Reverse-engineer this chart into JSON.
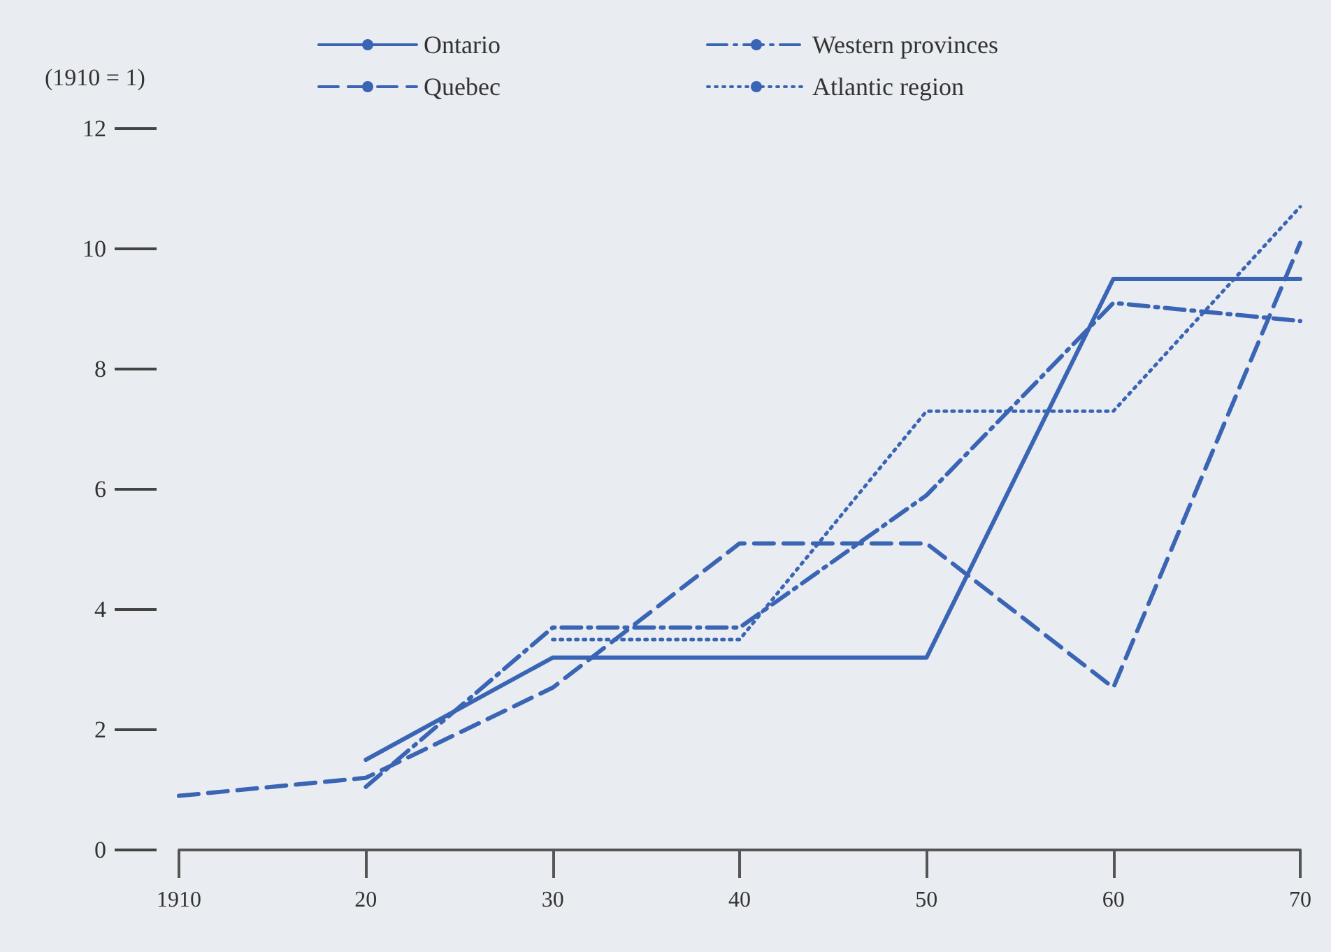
{
  "chart_data": {
    "type": "line",
    "ylabel": "(1910 = 1)",
    "x": [
      1910,
      1920,
      1930,
      1940,
      1950,
      1960,
      1970
    ],
    "xlim": [
      1910,
      1970
    ],
    "xticks": [
      1910,
      {
        "value": 1920,
        "label": "20"
      },
      {
        "value": 1930,
        "label": "30"
      },
      {
        "value": 1940,
        "label": "40"
      },
      {
        "value": 1950,
        "label": "50"
      },
      {
        "value": 1960,
        "label": "60"
      },
      {
        "value": 1970,
        "label": "70"
      }
    ],
    "ylim": [
      0,
      12
    ],
    "yticks": [
      0,
      2,
      4,
      6,
      8,
      10,
      12
    ],
    "grid": false,
    "legend": "top",
    "marker": "none",
    "series": [
      {
        "name": "Ontario",
        "color": "#3a64b4",
        "line_style": "solid",
        "values": [
          null,
          1.5,
          3.2,
          3.2,
          3.2,
          9.5,
          9.5
        ]
      },
      {
        "name": "Quebec",
        "color": "#3a64b4",
        "line_style": "dashed",
        "values": [
          0.9,
          1.2,
          2.7,
          5.1,
          5.1,
          2.7,
          10.1
        ]
      },
      {
        "name": "Western provinces",
        "color": "#3a64b4",
        "line_style": "dashdot",
        "values": [
          null,
          1.05,
          3.7,
          3.7,
          5.9,
          9.1,
          8.8
        ]
      },
      {
        "name": "Atlantic region",
        "color": "#3a64b4",
        "line_style": "dotted",
        "values": [
          null,
          null,
          3.5,
          3.5,
          7.3,
          7.3,
          10.7
        ]
      }
    ]
  }
}
